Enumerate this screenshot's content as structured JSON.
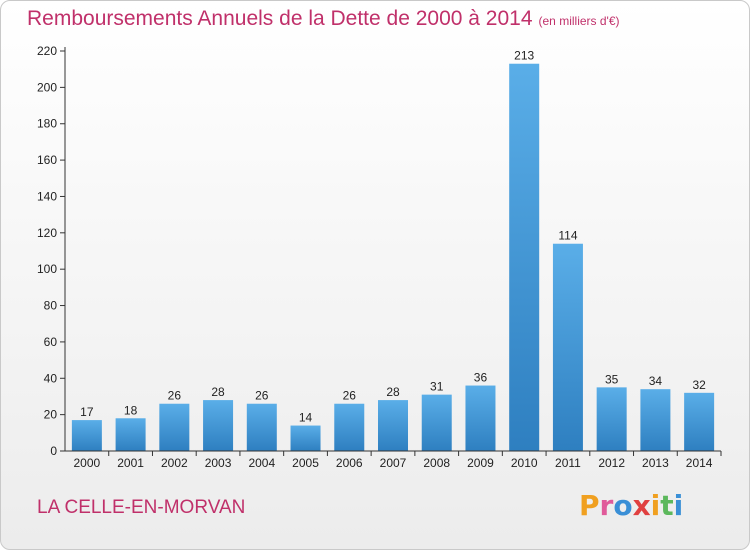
{
  "title": {
    "main": "Remboursements Annuels de la Dette de 2000 à 2014",
    "unit": "(en milliers d'€)"
  },
  "commune": "LA CELLE-EN-MORVAN",
  "logo": {
    "text": "Proxiti",
    "letters": [
      {
        "char": "P",
        "color": "#f0a020"
      },
      {
        "char": "r",
        "color": "#e05a9a"
      },
      {
        "char": "o",
        "color": "#3a8fd6"
      },
      {
        "char": "x",
        "color": "#e04040"
      },
      {
        "char": "i",
        "color": "#f0a020"
      },
      {
        "char": "t",
        "color": "#5cb85c"
      },
      {
        "char": "i",
        "color": "#3a8fd6"
      }
    ]
  },
  "colors": {
    "bar_light": "#5aaee8",
    "bar_dark": "#2e7fc0",
    "axis": "#333333",
    "grid": "#cccccc",
    "title": "#c0306a"
  },
  "chart_data": {
    "type": "bar",
    "title": "Remboursements Annuels de la Dette de 2000 à 2014",
    "subtitle": "(en milliers d'€)",
    "xlabel": "",
    "ylabel": "",
    "categories": [
      "2000",
      "2001",
      "2002",
      "2003",
      "2004",
      "2005",
      "2006",
      "2007",
      "2008",
      "2009",
      "2010",
      "2011",
      "2012",
      "2013",
      "2014"
    ],
    "values": [
      17,
      18,
      26,
      28,
      26,
      14,
      26,
      28,
      31,
      36,
      213,
      114,
      35,
      34,
      32
    ],
    "data_labels": [
      "17",
      "18",
      "26",
      "28",
      "26",
      "14",
      "26",
      "28",
      "31",
      "36",
      "213",
      "114",
      "35",
      "34",
      "32"
    ],
    "ylim": [
      0,
      220
    ],
    "yticks": [
      0,
      20,
      40,
      60,
      80,
      100,
      120,
      140,
      160,
      180,
      200,
      220
    ],
    "grid": false
  }
}
